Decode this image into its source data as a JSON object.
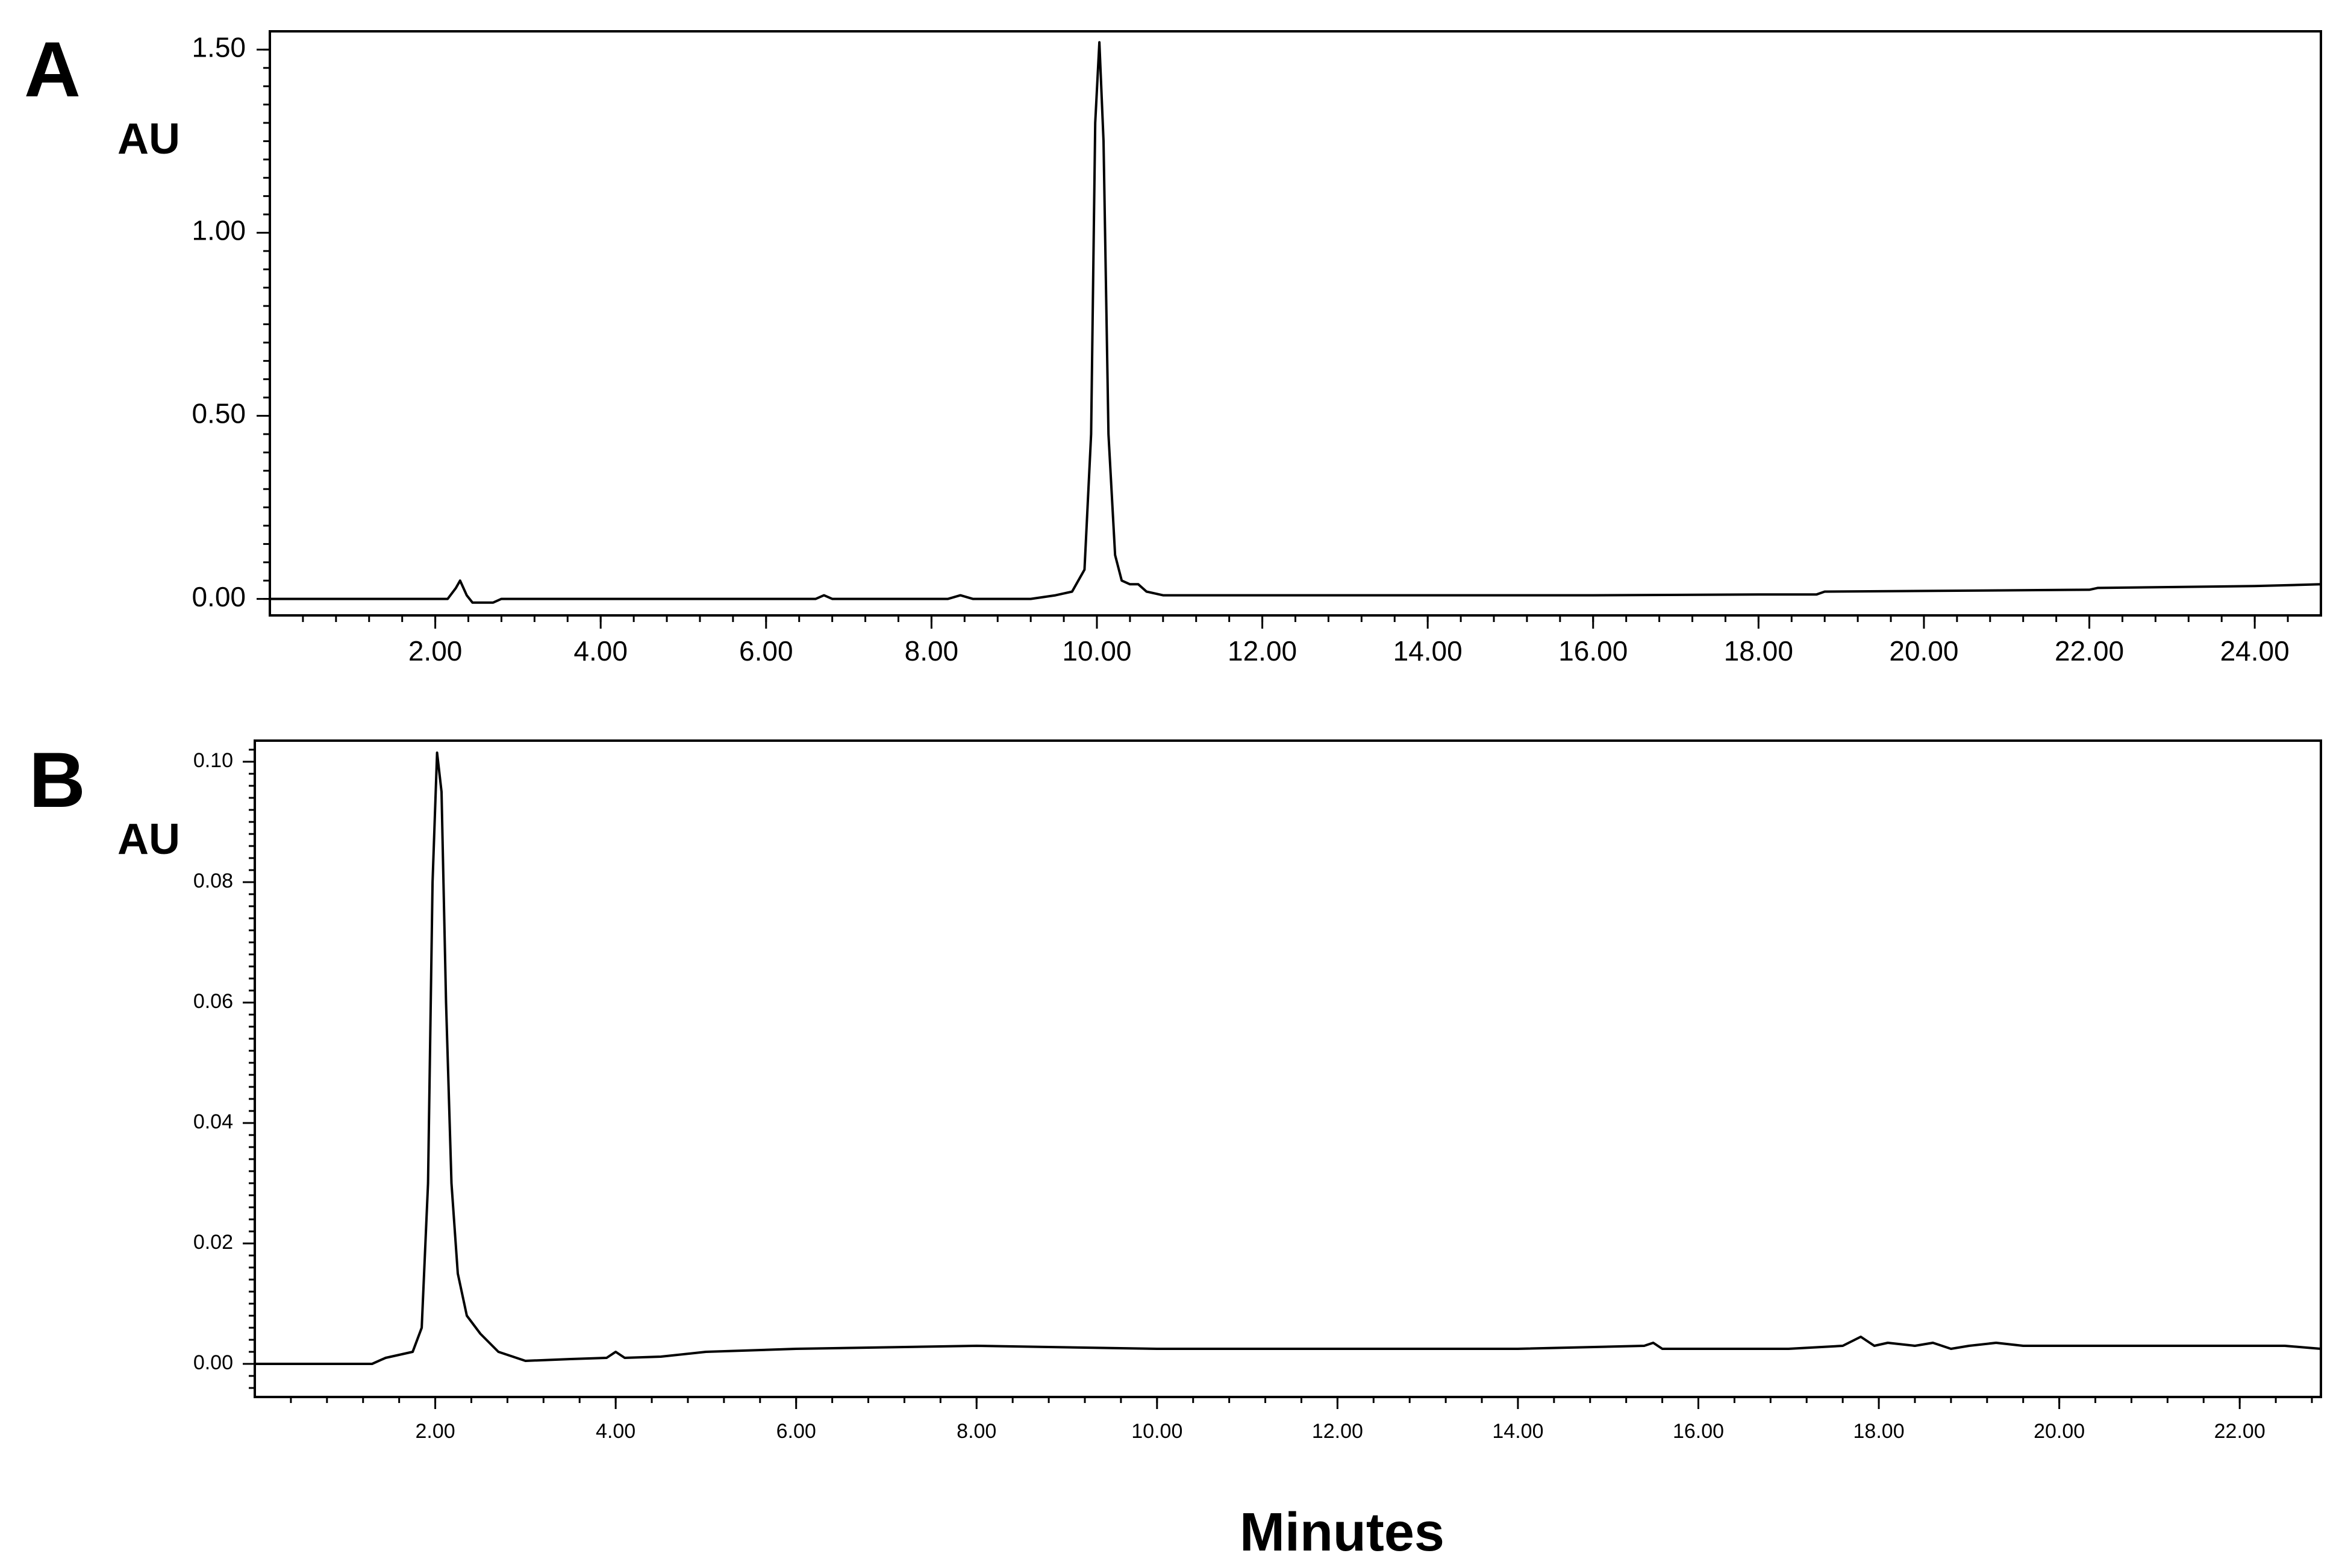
{
  "figure": {
    "x_title": "Minutes"
  },
  "chart_data": [
    {
      "type": "line",
      "panel": "A",
      "ylabel": "AU",
      "xlim": [
        0,
        24.8
      ],
      "ylim": [
        -0.045,
        1.55
      ],
      "x_ticks": [
        2,
        4,
        6,
        8,
        10,
        12,
        14,
        16,
        18,
        20,
        22,
        24
      ],
      "x_tick_labels": [
        "2.00",
        "4.00",
        "6.00",
        "8.00",
        "10.00",
        "12.00",
        "14.00",
        "16.00",
        "18.00",
        "20.00",
        "22.00",
        "24.00"
      ],
      "x_minor_step": 0.4,
      "y_ticks": [
        0,
        0.5,
        1.0,
        1.5
      ],
      "y_tick_labels": [
        "0.00",
        "0.50",
        "1.00",
        "1.50"
      ],
      "y_minor_step": 0.05,
      "grid": false,
      "series": [
        {
          "color": "#000000",
          "x": [
            0.0,
            2.15,
            2.25,
            2.3,
            2.38,
            2.45,
            2.7,
            2.8,
            4.0,
            6.6,
            6.7,
            6.8,
            8.2,
            8.35,
            8.5,
            9.2,
            9.5,
            9.7,
            9.85,
            9.93,
            9.98,
            10.03,
            10.08,
            10.14,
            10.22,
            10.3,
            10.4,
            10.5,
            10.6,
            10.8,
            12.0,
            16.0,
            18.0,
            18.7,
            18.8,
            22.0,
            22.1,
            24.0,
            24.8
          ],
          "y": [
            0.0,
            0.0,
            0.03,
            0.05,
            0.01,
            -0.01,
            -0.01,
            0.0,
            0.0,
            0.0,
            0.01,
            0.0,
            0.0,
            0.01,
            0.0,
            0.0,
            0.01,
            0.02,
            0.08,
            0.45,
            1.3,
            1.52,
            1.25,
            0.45,
            0.12,
            0.05,
            0.04,
            0.04,
            0.02,
            0.01,
            0.01,
            0.01,
            0.012,
            0.012,
            0.02,
            0.025,
            0.03,
            0.035,
            0.04
          ]
        }
      ]
    },
    {
      "type": "line",
      "panel": "B",
      "ylabel": "AU",
      "xlim": [
        0,
        22.9
      ],
      "ylim": [
        -0.0055,
        0.1035
      ],
      "x_ticks": [
        2,
        4,
        6,
        8,
        10,
        12,
        14,
        16,
        18,
        20,
        22
      ],
      "x_tick_labels": [
        "2.00",
        "4.00",
        "6.00",
        "8.00",
        "10.00",
        "12.00",
        "14.00",
        "16.00",
        "18.00",
        "20.00",
        "22.00"
      ],
      "x_minor_step": 0.4,
      "y_ticks": [
        0,
        0.02,
        0.04,
        0.06,
        0.08,
        0.1
      ],
      "y_tick_labels": [
        "0.00",
        "0.02",
        "0.04",
        "0.06",
        "0.08",
        "0.10"
      ],
      "y_minor_step": 0.002,
      "grid": false,
      "series": [
        {
          "color": "#000000",
          "x": [
            0.0,
            1.3,
            1.45,
            1.6,
            1.75,
            1.85,
            1.92,
            1.97,
            2.02,
            2.07,
            2.12,
            2.18,
            2.25,
            2.35,
            2.5,
            2.7,
            3.0,
            3.5,
            3.9,
            4.0,
            4.1,
            4.5,
            5.0,
            6.0,
            8.0,
            10.0,
            12.0,
            14.0,
            15.4,
            15.5,
            15.6,
            16.0,
            17.0,
            17.6,
            17.8,
            17.95,
            18.1,
            18.4,
            18.6,
            18.8,
            19.0,
            19.3,
            19.6,
            20.0,
            22.0,
            22.5,
            22.9
          ],
          "y": [
            0.0,
            0.0,
            0.001,
            0.0015,
            0.002,
            0.006,
            0.03,
            0.08,
            0.1015,
            0.095,
            0.06,
            0.03,
            0.015,
            0.008,
            0.005,
            0.002,
            0.0005,
            0.0008,
            0.001,
            0.002,
            0.001,
            0.0012,
            0.002,
            0.0025,
            0.003,
            0.0025,
            0.0025,
            0.0025,
            0.003,
            0.0035,
            0.0025,
            0.0025,
            0.0025,
            0.003,
            0.0045,
            0.003,
            0.0035,
            0.003,
            0.0035,
            0.0025,
            0.003,
            0.0035,
            0.003,
            0.003,
            0.003,
            0.003,
            0.0025
          ]
        }
      ]
    }
  ]
}
